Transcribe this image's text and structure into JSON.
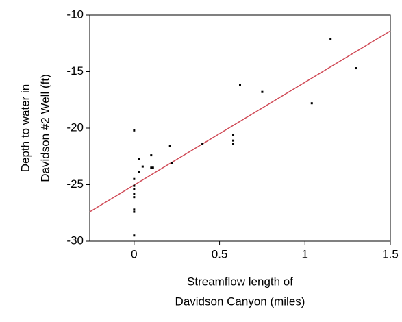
{
  "chart_data": {
    "type": "scatter",
    "xlabel": [
      "Streamflow length of",
      "Davidson Canyon (miles)"
    ],
    "ylabel": [
      "Depth to water in",
      "Davidson #2 Well (ft)"
    ],
    "xlim": [
      -0.26,
      1.5
    ],
    "ylim": [
      -30,
      -10
    ],
    "xticks": [
      0,
      0.5,
      1,
      1.5
    ],
    "yticks": [
      -10,
      -15,
      -20,
      -25,
      -30
    ],
    "series": [
      {
        "color": "#000000",
        "x": [
          0,
          0,
          0,
          0,
          0,
          0,
          0,
          0,
          0,
          0.03,
          0.03,
          0.05,
          0.1,
          0.1,
          0.11,
          0.21,
          0.22,
          0.4,
          0.58,
          0.58,
          0.58,
          0.62,
          0.75,
          1.04,
          1.15,
          1.3
        ],
        "values": [
          -20.2,
          -24.5,
          -25.1,
          -25.4,
          -25.8,
          -26.1,
          -27.2,
          -27.4,
          -29.5,
          -22.7,
          -23.9,
          -23.4,
          -22.4,
          -23.5,
          -23.5,
          -21.6,
          -23.1,
          -21.4,
          -20.6,
          -21.1,
          -21.4,
          -16.2,
          -16.8,
          -17.8,
          -12.1,
          -14.7
        ]
      }
    ],
    "fit_line": {
      "color": "#d04a56",
      "x": [
        -0.26,
        1.5
      ],
      "values": [
        -27.4,
        -11.4
      ]
    }
  }
}
